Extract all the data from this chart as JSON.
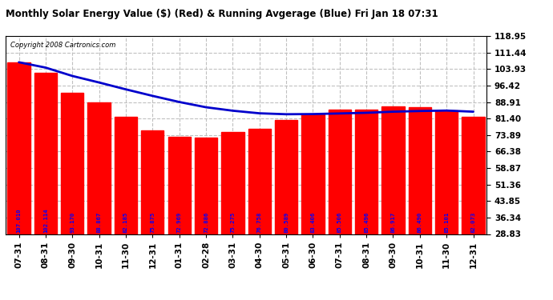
{
  "title": "Monthly Solar Energy Value ($) (Red) & Running Avgerage (Blue) Fri Jan 18 07:31",
  "copyright": "Copyright 2008 Cartronics.com",
  "categories": [
    "07-31",
    "08-31",
    "09-30",
    "10-31",
    "11-30",
    "12-31",
    "01-31",
    "02-28",
    "03-31",
    "04-30",
    "05-31",
    "06-30",
    "07-31",
    "08-31",
    "09-30",
    "10-31",
    "11-30",
    "12-31"
  ],
  "bar_values": [
    107.01,
    102.114,
    93.17,
    88.867,
    82.185,
    75.875,
    72.969,
    72.886,
    75.275,
    76.758,
    80.589,
    83.406,
    85.506,
    85.496,
    86.917,
    86.49,
    85.101,
    82.073
  ],
  "running_avg": [
    107.01,
    104.562,
    100.765,
    97.79,
    94.669,
    91.704,
    88.913,
    86.522,
    84.948,
    83.77,
    83.343,
    83.422,
    83.698,
    84.003,
    84.502,
    84.805,
    85.017,
    84.5
  ],
  "bar_color": "#ff0000",
  "line_color": "#0000cc",
  "label_color": "#0000ff",
  "bg_color": "#ffffff",
  "grid_color": "#c0c0c0",
  "yticks_right": [
    28.83,
    36.34,
    43.85,
    51.36,
    58.87,
    66.38,
    73.89,
    81.4,
    88.91,
    96.42,
    103.93,
    111.44,
    118.95
  ],
  "ymin": 28.83,
  "ymax": 118.95,
  "figsize": [
    6.9,
    3.75
  ],
  "dpi": 100
}
